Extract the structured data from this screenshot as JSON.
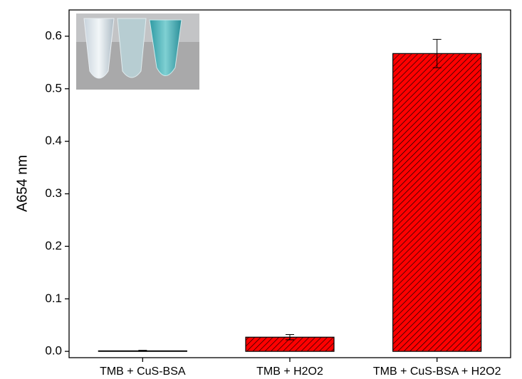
{
  "chart_data": {
    "type": "bar",
    "y_label": "A654 nm",
    "categories": [
      "TMB + CuS-BSA",
      "TMB + H2O2",
      "TMB + CuS-BSA + H2O2"
    ],
    "values": [
      0.001,
      0.027,
      0.567
    ],
    "errors": [
      0.001,
      0.005,
      0.027
    ],
    "color": "#ff0000",
    "ylim": [
      -0.012,
      0.65
    ],
    "yticks": [
      {
        "value": 0,
        "label": "0.0"
      },
      0.1,
      0.2,
      0.3,
      0.4,
      0.5,
      0.6
    ],
    "grid": false
  }
}
